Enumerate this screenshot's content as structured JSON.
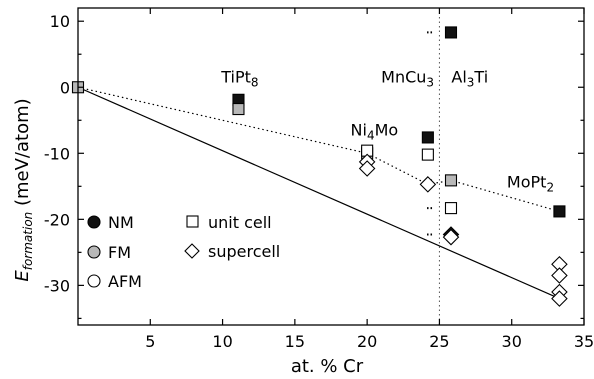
{
  "chart_data": {
    "type": "scatter",
    "title": "",
    "xlabel": "at. % Cr",
    "ylabel_main": "E",
    "ylabel_sub": "formation",
    "ylabel_unit": " (meV/atom)",
    "xlim": [
      0,
      35
    ],
    "ylim": [
      -36,
      12
    ],
    "xticks": [
      5,
      10,
      15,
      20,
      25,
      30,
      35
    ],
    "yticks": [
      -30,
      -20,
      -10,
      0,
      10
    ],
    "grid": false,
    "legend_position": "bottom-left",
    "legend": {
      "magnetic": [
        "NM",
        "FM",
        "AFM"
      ],
      "cell": [
        "unit cell",
        "supercell"
      ]
    },
    "annotations": [
      {
        "text": "TiPt",
        "sub": "8",
        "x": 11.2,
        "y": 0.7
      },
      {
        "text": "Ni",
        "sub": "4",
        "text2": "Mo",
        "x": 20.5,
        "y": -7.3
      },
      {
        "text": "MnCu",
        "sub": "3",
        "x": 22.8,
        "y": 0.7
      },
      {
        "text": "Al",
        "sub": "3",
        "text2": "Ti",
        "x": 27.1,
        "y": 0.7
      },
      {
        "text": "MoPt",
        "sub": "2",
        "x": 31.3,
        "y": -15.2
      }
    ],
    "series": [
      {
        "marker": "square",
        "state": "NM",
        "points": [
          [
            11.1,
            -1.9
          ],
          [
            24.2,
            -7.6
          ],
          [
            25.8,
            8.3
          ],
          [
            33.3,
            -18.8
          ]
        ]
      },
      {
        "marker": "square",
        "state": "FM",
        "points": [
          [
            0,
            0
          ],
          [
            11.1,
            -3.3
          ],
          [
            20.0,
            -10.0
          ],
          [
            25.8,
            -14.1
          ]
        ]
      },
      {
        "marker": "square",
        "state": "AFM",
        "points": [
          [
            20.0,
            -9.6
          ],
          [
            24.2,
            -10.2
          ],
          [
            25.8,
            -18.3
          ]
        ]
      },
      {
        "marker": "diamond",
        "state": "NM",
        "points": [
          [
            25.8,
            -22.3
          ]
        ]
      },
      {
        "marker": "diamond",
        "state": "AFM",
        "points": [
          [
            20.0,
            -11.3
          ],
          [
            20.0,
            -12.3
          ],
          [
            24.2,
            -14.7
          ],
          [
            25.8,
            -22.7
          ],
          [
            33.3,
            -26.8
          ],
          [
            33.3,
            -28.5
          ],
          [
            33.3,
            -31.0
          ],
          [
            33.3,
            -32.0
          ]
        ]
      }
    ],
    "reference_lines": [
      {
        "style": "solid",
        "from": [
          0,
          0
        ],
        "to": [
          33.3,
          -32.0
        ]
      },
      {
        "style": "dotted",
        "points": [
          [
            0,
            0
          ],
          [
            20.0,
            -10.0
          ],
          [
            24.2,
            -14.7
          ],
          [
            25.8,
            -14.1
          ],
          [
            33.3,
            -18.8
          ]
        ]
      }
    ],
    "vertical_line": {
      "style": "dotted",
      "x": 25.0
    },
    "stacked_marks": {
      "x": 24.35,
      "ys": [
        8.3,
        -7.6,
        -10.2,
        -14.1,
        -18.3,
        -22.3
      ]
    }
  },
  "colors": {
    "NM": "#111111",
    "FM": "#b8b8b8",
    "AFM": "#ffffff",
    "stroke": "#000000"
  }
}
